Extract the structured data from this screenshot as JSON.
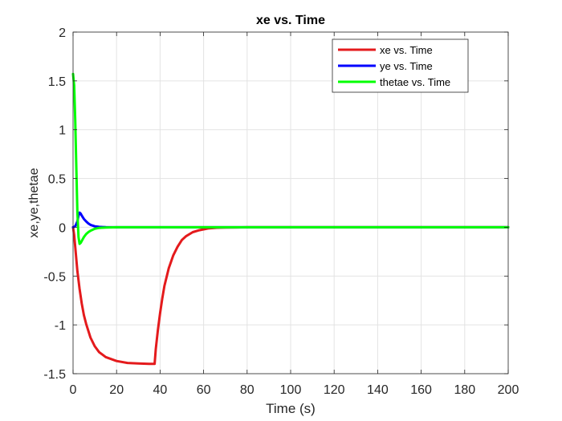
{
  "chart_data": {
    "type": "line",
    "title": "xe vs. Time",
    "xlabel": "Time (s)",
    "ylabel": "xe,ye,thetae",
    "xlim": [
      0,
      200
    ],
    "ylim": [
      -1.5,
      2
    ],
    "grid": true,
    "legend_position": "top-right",
    "x_ticks": [
      0,
      20,
      40,
      60,
      80,
      100,
      120,
      140,
      160,
      180,
      200
    ],
    "y_ticks": [
      -1.5,
      -1,
      -0.5,
      0,
      0.5,
      1,
      1.5,
      2
    ],
    "x_tick_labels": [
      "0",
      "20",
      "40",
      "60",
      "80",
      "100",
      "120",
      "140",
      "160",
      "180",
      "200"
    ],
    "y_tick_labels": [
      "-1.5",
      "-1",
      "-0.5",
      "0",
      "0.5",
      "1",
      "1.5",
      "2"
    ],
    "series": [
      {
        "name": "xe vs. Time",
        "color": "#e41a1c",
        "x": [
          0,
          0.5,
          1,
          1.5,
          2,
          3,
          4,
          5,
          6,
          8,
          10,
          12,
          15,
          20,
          25,
          30,
          35,
          37.5,
          38,
          39,
          40,
          41,
          42,
          44,
          46,
          48,
          50,
          52,
          55,
          58,
          62,
          66,
          70,
          75,
          80,
          90,
          100,
          120,
          140,
          160,
          180,
          200
        ],
        "y": [
          0,
          -0.08,
          -0.2,
          -0.33,
          -0.45,
          -0.63,
          -0.78,
          -0.9,
          -0.99,
          -1.13,
          -1.22,
          -1.28,
          -1.33,
          -1.37,
          -1.39,
          -1.395,
          -1.4,
          -1.4,
          -1.25,
          -1.05,
          -0.88,
          -0.73,
          -0.6,
          -0.42,
          -0.29,
          -0.2,
          -0.13,
          -0.09,
          -0.05,
          -0.03,
          -0.012,
          -0.005,
          -0.002,
          -0.001,
          0,
          0,
          0,
          0,
          0,
          0,
          0,
          0
        ]
      },
      {
        "name": "ye vs. Time",
        "color": "#0000ff",
        "x": [
          0,
          1,
          2,
          2.5,
          3,
          3.5,
          4,
          5,
          6,
          7,
          8,
          10,
          12,
          15,
          20,
          40,
          60,
          80,
          100,
          120,
          140,
          160,
          180,
          200
        ],
        "y": [
          0,
          0.01,
          0.06,
          0.12,
          0.15,
          0.14,
          0.12,
          0.085,
          0.06,
          0.04,
          0.025,
          0.01,
          0.004,
          0.001,
          0,
          0,
          0,
          0,
          0,
          0,
          0,
          0,
          0,
          0
        ]
      },
      {
        "name": "thetae vs. Time",
        "color": "#00ff00",
        "x": [
          0,
          0.5,
          1,
          1.5,
          2,
          2.5,
          3,
          3.5,
          4,
          5,
          6,
          7,
          8,
          10,
          12,
          15,
          20,
          40,
          60,
          80,
          100,
          120,
          140,
          160,
          180,
          200
        ],
        "y": [
          1.57,
          1.45,
          1.1,
          0.6,
          0.15,
          -0.1,
          -0.17,
          -0.16,
          -0.14,
          -0.1,
          -0.07,
          -0.05,
          -0.035,
          -0.015,
          -0.006,
          -0.002,
          0,
          0,
          0,
          0,
          0,
          0,
          0,
          0,
          0,
          0
        ]
      }
    ]
  }
}
